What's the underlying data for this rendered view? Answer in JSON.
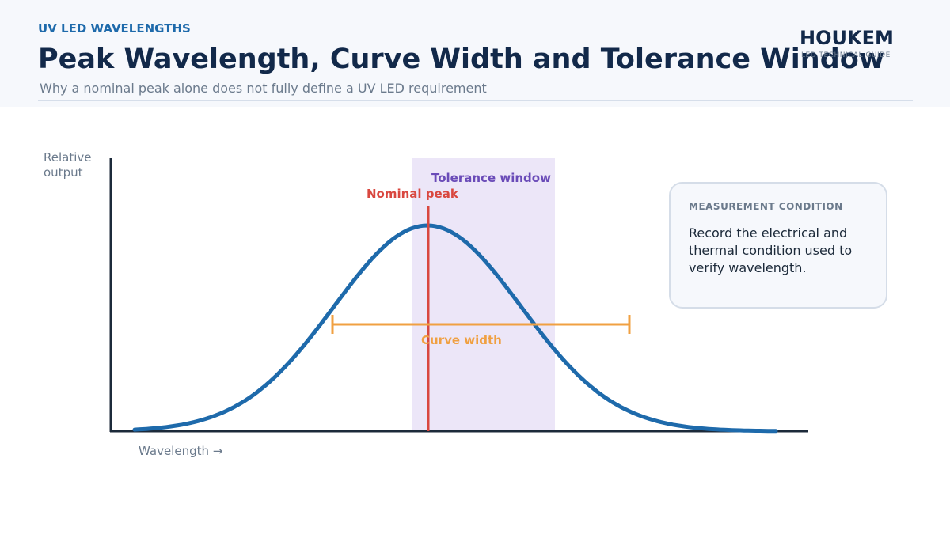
{
  "header": {
    "kicker": "UV LED WAVELENGTHS",
    "title": "Peak Wavelength, Curve Width and Tolerance Window",
    "subtitle": "Why a nominal peak alone does not fully define a UV LED requirement"
  },
  "brand": {
    "name": "HOUKEM",
    "tagline": "LED TECHNICAL GUIDE"
  },
  "diagram": {
    "y_label": "Relative output",
    "x_label": "Wavelength →",
    "nominal_peak": "Nominal peak",
    "tolerance_window": "Tolerance window",
    "curve_width": "Curve width"
  },
  "note": {
    "heading": "MEASUREMENT CONDITION",
    "text": "Record the electrical and thermal condition used to verify wavelength."
  }
}
